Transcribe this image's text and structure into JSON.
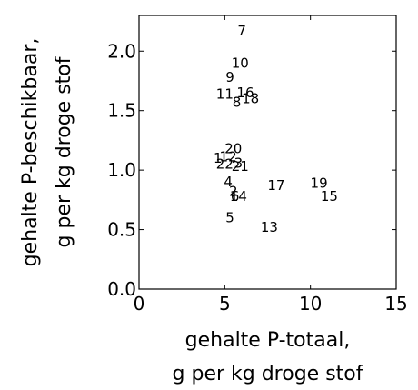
{
  "chart_data": {
    "type": "scatter",
    "xlabel_lines": [
      "gehalte P-totaal,",
      "g per kg droge stof"
    ],
    "ylabel_lines": [
      "gehalte P-beschikbaar,",
      "g per kg droge stof"
    ],
    "xlim": [
      0,
      15
    ],
    "ylim": [
      0.0,
      2.3
    ],
    "x_ticks": [
      0,
      5,
      10,
      15
    ],
    "x_tick_labels": [
      "0",
      "5",
      "10",
      "15"
    ],
    "y_ticks": [
      0.0,
      0.5,
      1.0,
      1.5,
      2.0
    ],
    "y_tick_labels": [
      "0.0",
      "0.5",
      "1.0",
      "1.5",
      "2.0"
    ],
    "grid": false,
    "legend": "none",
    "marker": "number-label",
    "points": [
      {
        "label": "1",
        "x": 4.6,
        "y": 1.1
      },
      {
        "label": "2",
        "x": 5.5,
        "y": 0.82
      },
      {
        "label": "3",
        "x": 5.8,
        "y": 1.06
      },
      {
        "label": "4",
        "x": 5.2,
        "y": 0.9
      },
      {
        "label": "5",
        "x": 5.3,
        "y": 0.6
      },
      {
        "label": "6",
        "x": 5.6,
        "y": 0.78
      },
      {
        "label": "7",
        "x": 6.0,
        "y": 2.17
      },
      {
        "label": "8",
        "x": 5.7,
        "y": 1.57
      },
      {
        "label": "9",
        "x": 5.3,
        "y": 1.78
      },
      {
        "label": "10",
        "x": 5.9,
        "y": 1.9
      },
      {
        "label": "11",
        "x": 5.0,
        "y": 1.64
      },
      {
        "label": "12",
        "x": 5.2,
        "y": 1.11
      },
      {
        "label": "13",
        "x": 7.6,
        "y": 0.52
      },
      {
        "label": "14",
        "x": 5.8,
        "y": 0.78
      },
      {
        "label": "15",
        "x": 11.1,
        "y": 0.78
      },
      {
        "label": "16",
        "x": 6.2,
        "y": 1.65
      },
      {
        "label": "17",
        "x": 8.0,
        "y": 0.87
      },
      {
        "label": "18",
        "x": 6.5,
        "y": 1.6
      },
      {
        "label": "19",
        "x": 10.5,
        "y": 0.89
      },
      {
        "label": "20",
        "x": 5.5,
        "y": 1.18
      },
      {
        "label": "21",
        "x": 5.9,
        "y": 1.03
      },
      {
        "label": "22",
        "x": 5.0,
        "y": 1.05
      }
    ]
  }
}
